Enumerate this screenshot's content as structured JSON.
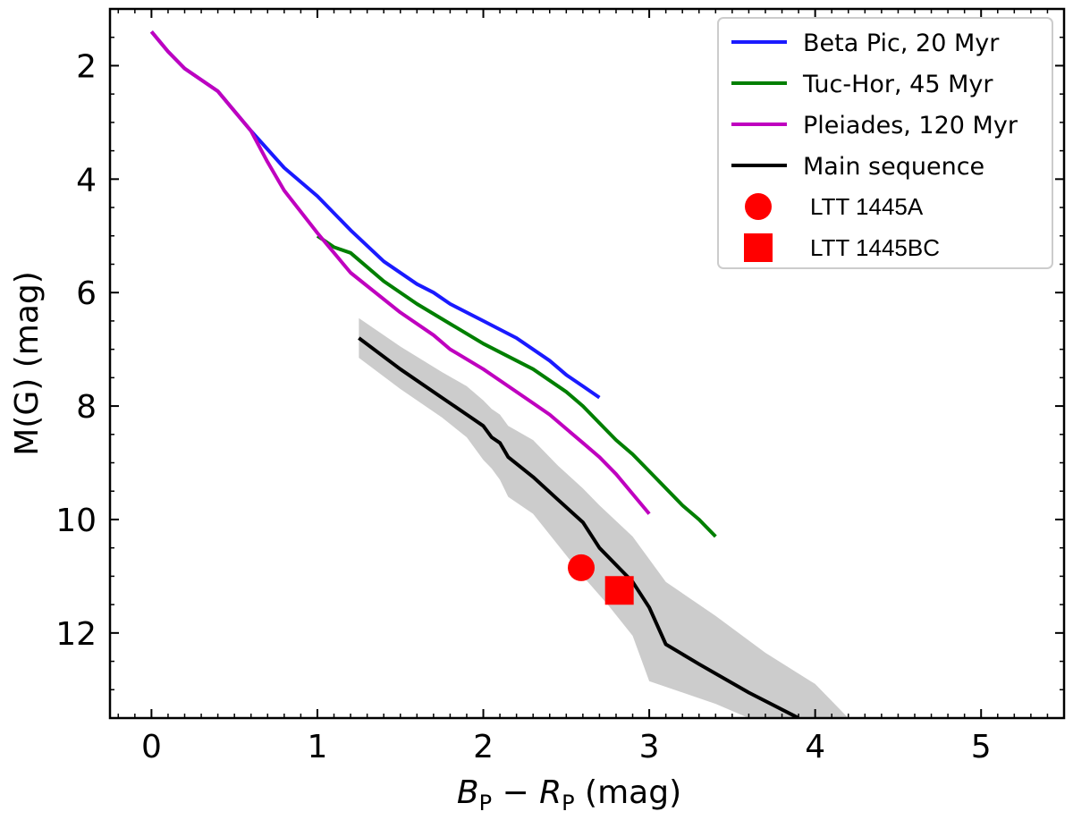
{
  "chart_data": {
    "type": "line",
    "xlabel_main_left": "B",
    "xlabel_sub_left": "P",
    "xlabel_minus": "−",
    "xlabel_main_right": "R",
    "xlabel_sub_right": "P",
    "xlabel_unit": "(mag)",
    "ylabel": "M(G) (mag)",
    "xlim": [
      -0.25,
      5.5
    ],
    "ylim": [
      13.5,
      1.0
    ],
    "y_inverted": true,
    "xticks": [
      0,
      1,
      2,
      3,
      4,
      5
    ],
    "yticks": [
      2,
      4,
      6,
      8,
      10,
      12
    ],
    "grid": false,
    "legend_position": "top-right",
    "series": [
      {
        "name": "Beta Pic, 20 Myr",
        "color": "#1a1aff",
        "x": [
          0.0,
          0.1,
          0.2,
          0.4,
          0.6,
          0.8,
          1.0,
          1.2,
          1.4,
          1.6,
          1.7,
          1.8,
          2.0,
          2.2,
          2.4,
          2.5,
          2.6,
          2.7
        ],
        "y": [
          1.4,
          1.75,
          2.05,
          2.45,
          3.15,
          3.8,
          4.3,
          4.9,
          5.45,
          5.85,
          6.0,
          6.2,
          6.5,
          6.8,
          7.2,
          7.45,
          7.65,
          7.85
        ]
      },
      {
        "name": "Tuc-Hor, 45 Myr",
        "color": "#007f00",
        "x": [
          1.0,
          1.1,
          1.2,
          1.4,
          1.6,
          1.8,
          2.0,
          2.3,
          2.5,
          2.6,
          2.7,
          2.8,
          2.9,
          3.0,
          3.2,
          3.3,
          3.4
        ],
        "y": [
          5.0,
          5.2,
          5.3,
          5.8,
          6.2,
          6.55,
          6.9,
          7.35,
          7.75,
          8.0,
          8.3,
          8.6,
          8.85,
          9.15,
          9.75,
          10.0,
          10.3
        ]
      },
      {
        "name": "Pleiades, 120 Myr",
        "color": "#bf00bf",
        "x": [
          0.0,
          0.1,
          0.2,
          0.4,
          0.6,
          0.7,
          0.8,
          1.0,
          1.2,
          1.5,
          1.7,
          1.8,
          2.0,
          2.1,
          2.3,
          2.4,
          2.5,
          2.6,
          2.7,
          2.8,
          2.9,
          3.0
        ],
        "y": [
          1.4,
          1.75,
          2.05,
          2.45,
          3.15,
          3.7,
          4.2,
          4.95,
          5.65,
          6.35,
          6.75,
          7.0,
          7.35,
          7.55,
          7.95,
          8.15,
          8.4,
          8.65,
          8.9,
          9.2,
          9.55,
          9.9
        ]
      },
      {
        "name": "Main sequence",
        "color": "#000000",
        "x": [
          1.25,
          1.5,
          1.75,
          1.9,
          2.0,
          2.05,
          2.1,
          2.15,
          2.3,
          2.45,
          2.6,
          2.7,
          2.9,
          3.0,
          3.1,
          3.3,
          3.6,
          3.9
        ],
        "y": [
          6.8,
          7.35,
          7.85,
          8.15,
          8.35,
          8.55,
          8.65,
          8.9,
          9.25,
          9.65,
          10.05,
          10.5,
          11.1,
          11.55,
          12.2,
          12.55,
          13.05,
          13.5
        ],
        "band_upper": [
          6.45,
          6.95,
          7.4,
          7.65,
          7.9,
          8.05,
          8.15,
          8.35,
          8.6,
          9.05,
          9.45,
          9.75,
          10.3,
          10.7,
          11.1,
          11.7,
          12.35,
          12.9,
          13.5
        ],
        "band_upper_x": [
          1.25,
          1.5,
          1.75,
          1.9,
          2.0,
          2.05,
          2.1,
          2.15,
          2.3,
          2.45,
          2.6,
          2.7,
          2.9,
          3.0,
          3.1,
          3.4,
          3.7,
          4.0,
          4.2
        ],
        "band_lower": [
          7.15,
          7.7,
          8.2,
          8.55,
          8.95,
          9.1,
          9.3,
          9.6,
          9.9,
          10.45,
          11.0,
          11.5,
          12.05,
          12.85,
          13.25,
          13.5
        ],
        "band_lower_x": [
          1.25,
          1.5,
          1.75,
          1.9,
          2.0,
          2.05,
          2.1,
          2.15,
          2.3,
          2.45,
          2.6,
          2.75,
          2.9,
          3.0,
          3.4,
          3.6
        ]
      }
    ],
    "points": [
      {
        "name": "LTT 1445A",
        "marker": "circle",
        "color": "#ff0000",
        "x": 2.59,
        "y": 10.85
      },
      {
        "name": "LTT 1445BC",
        "marker": "square",
        "color": "#ff0000",
        "x": 2.82,
        "y": 11.25
      }
    ]
  }
}
